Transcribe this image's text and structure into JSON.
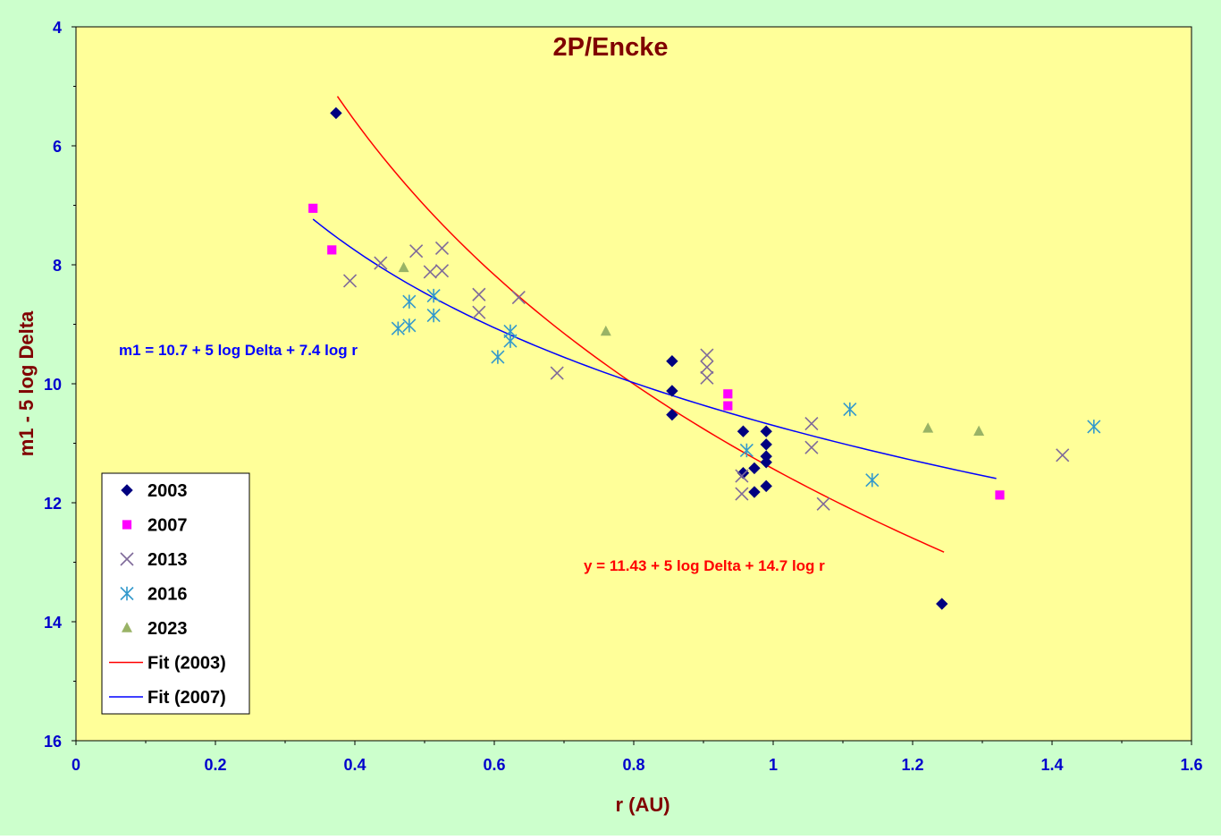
{
  "colors": {
    "outer_background": "#CCFFCC",
    "plot_background": "#FFFF99",
    "title": "#800000",
    "axis_labels": "#0000CC",
    "fit_2003": "#FF0000",
    "fit_2007": "#0000FF",
    "series_2003": "#000080",
    "series_2007": "#FF00FF",
    "series_2013": "#7F6A9A",
    "series_2016": "#3399CC",
    "series_2023": "#99B366"
  },
  "chart_data": {
    "type": "scatter",
    "title": "2P/Encke",
    "xlabel": "r (AU)",
    "ylabel": "m1 - 5 log Delta",
    "xlim": [
      0,
      1.6
    ],
    "ylim": [
      4,
      16
    ],
    "y_inverted": true,
    "x_ticks": [
      "0",
      "0.2",
      "0.4",
      "0.6",
      "0.8",
      "1",
      "1.2",
      "1.4",
      "1.6"
    ],
    "y_ticks": [
      "4",
      "6",
      "8",
      "10",
      "12",
      "14",
      "16"
    ],
    "grid": false,
    "legend_position": "bottom-left",
    "series": [
      {
        "name": "2003",
        "marker": "diamond",
        "color": "#000080",
        "points": [
          [
            0.373,
            5.45
          ],
          [
            0.855,
            9.62
          ],
          [
            0.855,
            10.12
          ],
          [
            0.855,
            10.52
          ],
          [
            0.957,
            10.8
          ],
          [
            0.957,
            11.5
          ],
          [
            0.973,
            11.42
          ],
          [
            0.973,
            11.82
          ],
          [
            0.99,
            10.8
          ],
          [
            0.99,
            11.02
          ],
          [
            0.99,
            11.22
          ],
          [
            0.99,
            11.32
          ],
          [
            0.99,
            11.72
          ],
          [
            1.242,
            13.7
          ]
        ]
      },
      {
        "name": "2007",
        "marker": "square",
        "color": "#FF00FF",
        "points": [
          [
            0.34,
            7.05
          ],
          [
            0.367,
            7.75
          ],
          [
            0.935,
            10.17
          ],
          [
            0.935,
            10.37
          ],
          [
            1.325,
            11.87
          ]
        ]
      },
      {
        "name": "2013",
        "marker": "x",
        "color": "#7F6A9A",
        "points": [
          [
            0.393,
            8.27
          ],
          [
            0.437,
            7.97
          ],
          [
            0.488,
            7.77
          ],
          [
            0.508,
            8.12
          ],
          [
            0.525,
            7.72
          ],
          [
            0.525,
            8.1
          ],
          [
            0.578,
            8.5
          ],
          [
            0.578,
            8.8
          ],
          [
            0.635,
            8.55
          ],
          [
            0.69,
            9.82
          ],
          [
            0.905,
            9.52
          ],
          [
            0.905,
            9.72
          ],
          [
            0.905,
            9.9
          ],
          [
            0.955,
            11.55
          ],
          [
            0.955,
            11.85
          ],
          [
            1.055,
            10.67
          ],
          [
            1.055,
            11.07
          ],
          [
            1.072,
            12.02
          ],
          [
            1.415,
            11.2
          ]
        ]
      },
      {
        "name": "2016",
        "marker": "asterisk",
        "color": "#3399CC",
        "points": [
          [
            0.462,
            9.07
          ],
          [
            0.478,
            8.62
          ],
          [
            0.478,
            9.02
          ],
          [
            0.513,
            8.52
          ],
          [
            0.513,
            8.85
          ],
          [
            0.605,
            9.55
          ],
          [
            0.623,
            9.12
          ],
          [
            0.623,
            9.28
          ],
          [
            0.962,
            11.12
          ],
          [
            1.11,
            10.43
          ],
          [
            1.142,
            11.62
          ],
          [
            1.46,
            10.72
          ]
        ]
      },
      {
        "name": "2023",
        "marker": "triangle",
        "color": "#99B366",
        "points": [
          [
            0.47,
            8.05
          ],
          [
            0.76,
            9.12
          ],
          [
            1.222,
            10.75
          ],
          [
            1.295,
            10.8
          ]
        ]
      }
    ],
    "fits": [
      {
        "name": "Fit (2003)",
        "color": "#FF0000",
        "model": "y = a + b*log10(r)",
        "a": 11.43,
        "b": 14.7,
        "x_range": [
          0.375,
          1.245
        ],
        "equation_label": "y = 11.43 + 5 log Delta + 14.7 log r"
      },
      {
        "name": "Fit (2007)",
        "color": "#0000FF",
        "model": "y = a + b*log10(r)",
        "a": 10.7,
        "b": 7.4,
        "x_range": [
          0.34,
          1.32
        ],
        "equation_label": "m1 = 10.7 + 5 log Delta + 7.4 log r"
      }
    ]
  }
}
